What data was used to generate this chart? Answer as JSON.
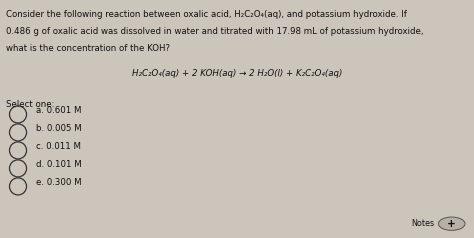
{
  "background_color": "#cbc5bc",
  "text_color": "#111111",
  "question_line1": "Consider the following reaction between oxalic acid, H₂C₂O₄(aq), and potassium hydroxide. If",
  "question_line2": "0.486 g of oxalic acid was dissolved in water and titrated with 17.98 mL of potassium hydroxide,",
  "question_line3": "what is the concentration of the KOH?",
  "equation": "H₂C₂O₄(aq) + 2 KOH(aq) → 2 H₂O(l) + K₂C₂O₄(aq)",
  "select_one": "Select one:",
  "options": [
    "a. 0.601 M",
    "b. 0.005 M",
    "c. 0.011 M",
    "d. 0.101 M",
    "e. 0.300 M"
  ],
  "notes_label": "Notes",
  "figsize": [
    4.74,
    2.38
  ],
  "dpi": 100
}
